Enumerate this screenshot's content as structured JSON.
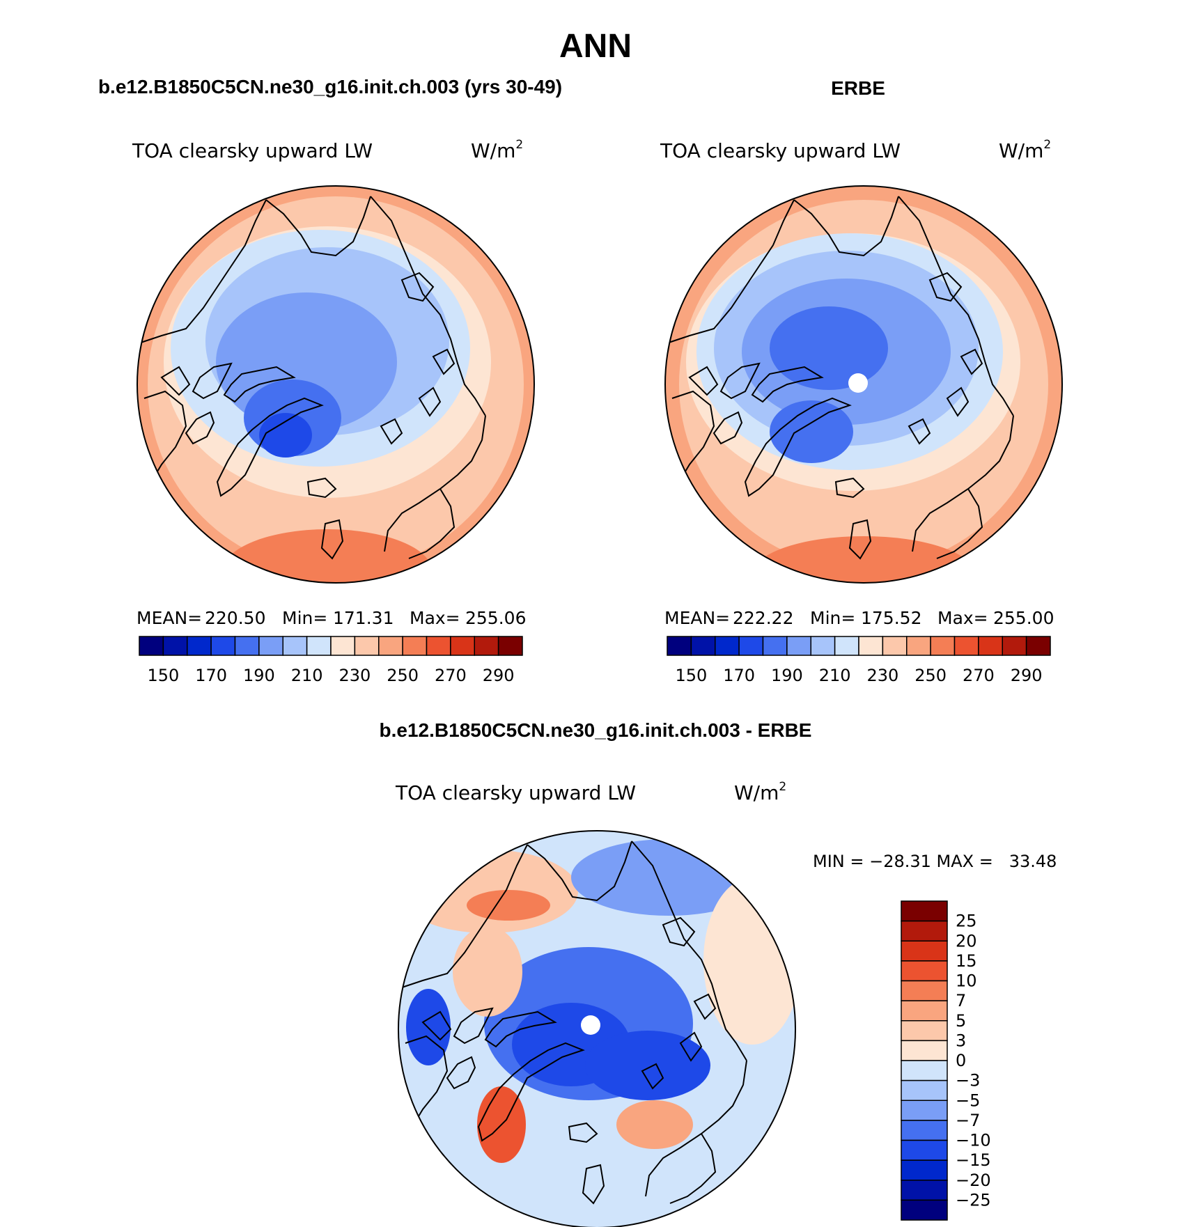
{
  "figure": {
    "title": "ANN",
    "panel_left_title": "b.e12.B1850C5CN.ne30_g16.init.ch.003 (yrs 30-49)",
    "panel_right_title": "ERBE",
    "panel_diff_title": "b.e12.B1850C5CN.ne30_g16.init.ch.003 - ERBE"
  },
  "panels": [
    {
      "id": "model",
      "variable": "TOA clearsky upward LW",
      "units_base": "W/m",
      "units_exp": "2",
      "stats": {
        "mean": "220.50",
        "min": "171.31",
        "max": "255.06"
      },
      "stats_labels": {
        "mean": "MEAN=",
        "min": "Min=",
        "max": "Max="
      }
    },
    {
      "id": "obs",
      "variable": "TOA clearsky upward LW",
      "units_base": "W/m",
      "units_exp": "2",
      "stats": {
        "mean": "222.22",
        "min": "175.52",
        "max": "255.00"
      },
      "stats_labels": {
        "mean": "MEAN=",
        "min": "Min=",
        "max": "Max="
      }
    },
    {
      "id": "diff",
      "variable": "TOA clearsky upward LW",
      "units_base": "W/m",
      "units_exp": "2",
      "minmax_text": "MIN = −28.31 MAX =   33.48"
    }
  ],
  "colorbar_abs": {
    "colors": [
      "#00007e",
      "#0012a8",
      "#0028cc",
      "#1e49e8",
      "#4570f0",
      "#7a9ef6",
      "#a7c4fa",
      "#d0e4fb",
      "#fde5d3",
      "#fcc8ab",
      "#f9a57f",
      "#f47e55",
      "#ec5330",
      "#d93418",
      "#b21a0c",
      "#7a0000"
    ],
    "tick_labels": [
      "150",
      "170",
      "190",
      "210",
      "230",
      "250",
      "270",
      "290"
    ]
  },
  "colorbar_diff": {
    "colors": [
      "#00007e",
      "#0012a8",
      "#0028cc",
      "#1e49e8",
      "#4570f0",
      "#7a9ef6",
      "#a7c4fa",
      "#d0e4fb",
      "#fde5d3",
      "#fcc8ab",
      "#f9a57f",
      "#f47e55",
      "#ec5330",
      "#d93418",
      "#b21a0c",
      "#7a0000"
    ],
    "tick_labels": [
      "−25",
      "−20",
      "−15",
      "−10",
      "−7",
      "−5",
      "−3",
      "0",
      "3",
      "5",
      "7",
      "10",
      "15",
      "20",
      "25"
    ]
  },
  "legend_colors": {
    "ocean_model": "#f9a57f",
    "ocean_obs": "#f9a57f",
    "coast": "#000000"
  }
}
